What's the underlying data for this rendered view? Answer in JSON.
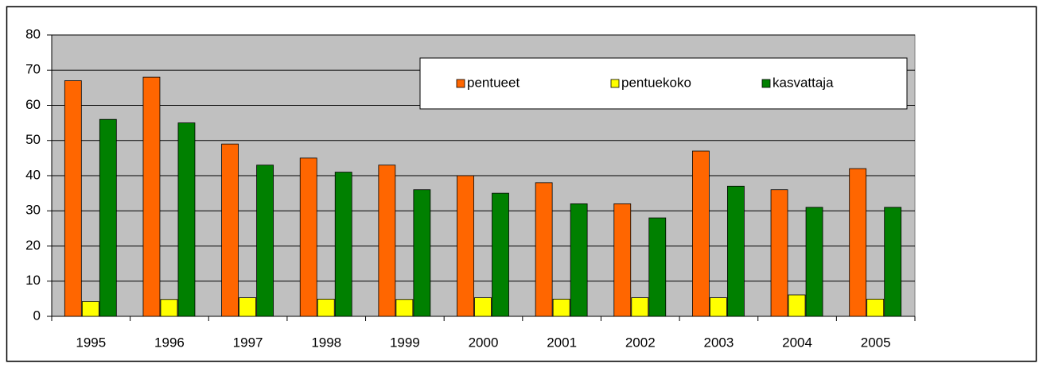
{
  "chart_data": {
    "type": "bar",
    "categories": [
      "1995",
      "1996",
      "1997",
      "1998",
      "1999",
      "2000",
      "2001",
      "2002",
      "2003",
      "2004",
      "2005"
    ],
    "series": [
      {
        "name": "pentueet",
        "color": "#ff6600",
        "values": [
          67,
          68,
          49,
          45,
          43,
          40,
          38,
          32,
          47,
          36,
          42
        ]
      },
      {
        "name": "pentuekoko",
        "color": "#ffff00",
        "values": [
          4.2,
          4.8,
          5.3,
          4.9,
          4.8,
          5.3,
          4.9,
          5.3,
          5.3,
          6.1,
          4.9
        ]
      },
      {
        "name": "kasvattaja",
        "color": "#008000",
        "values": [
          56,
          55,
          43,
          41,
          36,
          35,
          32,
          28,
          37,
          31,
          31
        ]
      }
    ],
    "ylim": [
      0,
      80
    ],
    "yticks": [
      0,
      10,
      20,
      30,
      40,
      50,
      60,
      70,
      80
    ],
    "grid": true,
    "plot_background": "#c0c0c0",
    "legend": "upper right"
  }
}
